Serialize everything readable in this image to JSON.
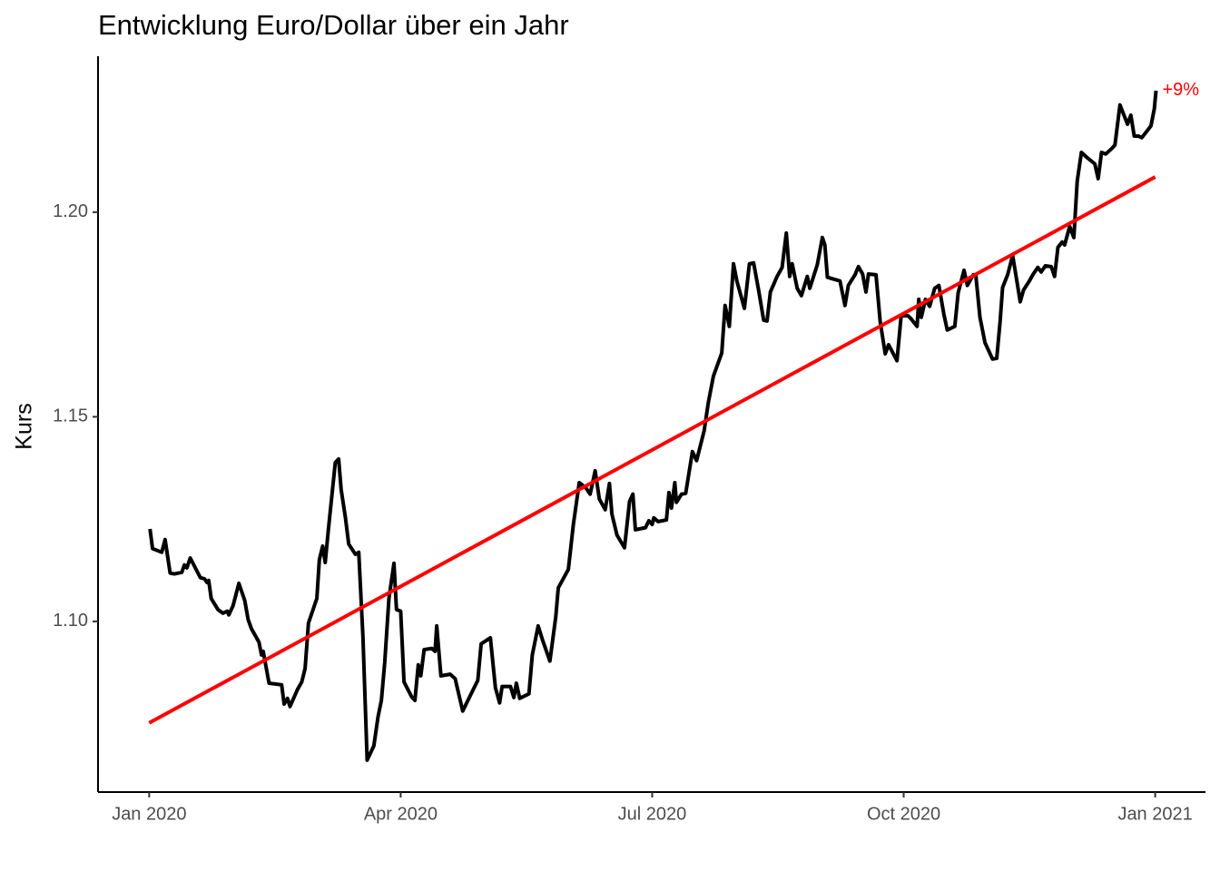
{
  "chart_data": {
    "type": "line",
    "title": "Entwicklung Euro/Dollar über ein Jahr",
    "ylabel": "Kurs",
    "color": "#000000",
    "x": [
      0.01,
      0.04,
      0.15,
      0.19,
      0.25,
      0.3,
      0.39,
      0.42,
      0.45,
      0.49,
      0.61,
      0.66,
      0.69,
      0.71,
      0.74,
      0.82,
      0.88,
      0.93,
      0.95,
      1.0,
      1.07,
      1.14,
      1.18,
      1.22,
      1.31,
      1.34,
      1.36,
      1.43,
      1.58,
      1.61,
      1.65,
      1.68,
      1.77,
      1.82,
      1.86,
      1.9,
      2.0,
      2.03,
      2.07,
      2.1,
      2.14,
      2.22,
      2.26,
      2.29,
      2.34,
      2.38,
      2.46,
      2.5,
      2.55,
      2.6,
      2.68,
      2.73,
      2.77,
      2.81,
      2.86,
      2.92,
      2.95,
      3.0,
      3.04,
      3.13,
      3.17,
      3.21,
      3.24,
      3.28,
      3.37,
      3.41,
      3.43,
      3.48,
      3.59,
      3.65,
      3.74,
      3.84,
      3.92,
      3.96,
      4.07,
      4.13,
      4.18,
      4.21,
      4.31,
      4.35,
      4.38,
      4.42,
      4.53,
      4.57,
      4.64,
      4.69,
      4.78,
      4.85,
      4.88,
      5.0,
      5.06,
      5.13,
      5.21,
      5.26,
      5.32,
      5.37,
      5.44,
      5.49,
      5.52,
      5.58,
      5.67,
      5.73,
      5.77,
      5.8,
      5.92,
      5.96,
      6.0,
      6.02,
      6.07,
      6.17,
      6.2,
      6.23,
      6.27,
      6.29,
      6.35,
      6.4,
      6.48,
      6.53,
      6.62,
      6.67,
      6.73,
      6.83,
      6.87,
      6.92,
      6.97,
      7.01,
      7.1,
      7.16,
      7.21,
      7.27,
      7.33,
      7.37,
      7.41,
      7.49,
      7.55,
      7.6,
      7.64,
      7.67,
      7.73,
      7.78,
      7.85,
      7.88,
      7.97,
      8.03,
      8.06,
      8.09,
      8.17,
      8.24,
      8.3,
      8.34,
      8.42,
      8.46,
      8.51,
      8.55,
      8.58,
      8.67,
      8.72,
      8.78,
      8.82,
      8.92,
      8.97,
      9.05,
      9.09,
      9.16,
      9.18,
      9.21,
      9.26,
      9.31,
      9.37,
      9.42,
      9.48,
      9.52,
      9.61,
      9.65,
      9.72,
      9.76,
      9.83,
      9.86,
      9.91,
      9.97,
      10.06,
      10.11,
      10.15,
      10.18,
      10.24,
      10.3,
      10.35,
      10.39,
      10.43,
      10.5,
      10.54,
      10.6,
      10.64,
      10.69,
      10.76,
      10.8,
      10.84,
      10.89,
      10.92,
      10.98,
      11.03,
      11.07,
      11.12,
      11.19,
      11.28,
      11.32,
      11.36,
      11.41,
      11.48,
      11.52,
      11.58,
      11.67,
      11.71,
      11.75,
      11.8,
      11.84,
      11.89,
      11.95,
      11.99,
      12.01
    ],
    "values": [
      1.1226,
      1.1178,
      1.1169,
      1.12,
      1.1118,
      1.1116,
      1.112,
      1.1138,
      1.1131,
      1.1155,
      1.1107,
      1.1104,
      1.1095,
      1.11,
      1.1056,
      1.1029,
      1.102,
      1.1025,
      1.1016,
      1.1038,
      1.1093,
      1.1051,
      1.1005,
      1.0982,
      1.0949,
      1.0918,
      1.0927,
      1.0849,
      1.0845,
      1.0798,
      1.0812,
      1.0792,
      1.0834,
      1.0852,
      1.0885,
      1.0996,
      1.1056,
      1.1151,
      1.1184,
      1.1144,
      1.1229,
      1.1388,
      1.1397,
      1.1322,
      1.1255,
      1.1189,
      1.1164,
      1.1169,
      1.0962,
      1.0661,
      1.0696,
      1.0767,
      1.0807,
      1.09,
      1.1056,
      1.1142,
      1.1029,
      1.1025,
      1.0852,
      1.0816,
      1.0807,
      1.0894,
      1.0867,
      1.0931,
      1.0934,
      1.0927,
      1.0989,
      1.0867,
      1.0871,
      1.086,
      1.0781,
      1.0823,
      1.0856,
      1.0945,
      1.096,
      1.0838,
      1.0801,
      1.0841,
      1.0841,
      1.0814,
      1.0849,
      1.0812,
      1.0823,
      1.0918,
      1.0989,
      1.0956,
      1.0903,
      1.1011,
      1.1082,
      1.1127,
      1.1237,
      1.1339,
      1.1326,
      1.1311,
      1.1368,
      1.1299,
      1.1273,
      1.1337,
      1.1262,
      1.1211,
      1.118,
      1.1293,
      1.1311,
      1.1224,
      1.1229,
      1.1246,
      1.1237,
      1.1253,
      1.1244,
      1.1248,
      1.1315,
      1.1277,
      1.1339,
      1.1291,
      1.1311,
      1.1313,
      1.1415,
      1.1393,
      1.1466,
      1.1535,
      1.1599,
      1.1656,
      1.1772,
      1.1721,
      1.1874,
      1.1832,
      1.1765,
      1.1874,
      1.1876,
      1.1809,
      1.1736,
      1.1734,
      1.1805,
      1.1843,
      1.1865,
      1.1949,
      1.1843,
      1.1874,
      1.1814,
      1.1796,
      1.1843,
      1.1814,
      1.1872,
      1.1938,
      1.192,
      1.1841,
      1.1836,
      1.1832,
      1.1772,
      1.1821,
      1.1847,
      1.1867,
      1.1849,
      1.1805,
      1.1849,
      1.1847,
      1.1732,
      1.1654,
      1.1676,
      1.1637,
      1.1747,
      1.1747,
      1.1739,
      1.1721,
      1.1787,
      1.1743,
      1.1787,
      1.177,
      1.1814,
      1.1821,
      1.175,
      1.1712,
      1.1721,
      1.1803,
      1.1858,
      1.1821,
      1.1847,
      1.1847,
      1.1743,
      1.1681,
      1.1641,
      1.1643,
      1.1732,
      1.1816,
      1.1847,
      1.1894,
      1.1832,
      1.1781,
      1.181,
      1.1832,
      1.1847,
      1.1865,
      1.1854,
      1.1869,
      1.1867,
      1.1843,
      1.1914,
      1.1927,
      1.192,
      1.1965,
      1.1938,
      1.2076,
      1.2146,
      1.2133,
      1.2118,
      1.2082,
      1.2146,
      1.2142,
      1.2155,
      1.2164,
      1.2262,
      1.2215,
      1.2237,
      1.2186,
      1.2186,
      1.2182,
      1.2195,
      1.2211,
      1.2253,
      1.2297
    ],
    "trend": {
      "color": "#ff0000",
      "x": [
        0,
        12
      ],
      "values": [
        1.0752,
        1.2086
      ]
    },
    "annotation": {
      "text": "+9%",
      "color": "#ff0000"
    },
    "xlim": [
      -0.61,
      12.6
    ],
    "xticks": [
      {
        "value": 0,
        "label": "Jan 2020"
      },
      {
        "value": 3,
        "label": "Apr 2020"
      },
      {
        "value": 6,
        "label": "Jul 2020"
      },
      {
        "value": 9,
        "label": "Oct 2020"
      },
      {
        "value": 12,
        "label": "Jan 2021"
      }
    ],
    "ylim": [
      1.0583,
      1.2381
    ],
    "yticks": [
      {
        "value": 1.1,
        "label": "1.10"
      },
      {
        "value": 1.15,
        "label": "1.15"
      },
      {
        "value": 1.2,
        "label": "1.20"
      }
    ],
    "grid": false
  }
}
